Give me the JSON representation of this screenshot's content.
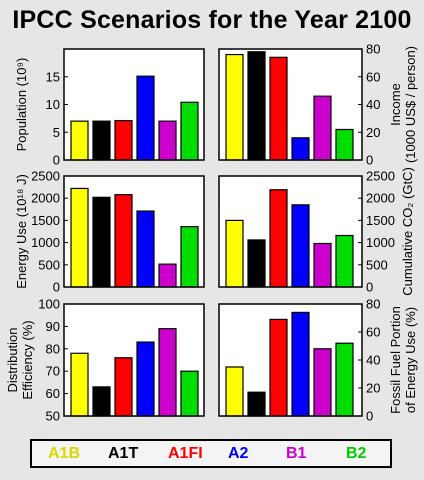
{
  "title": "IPCC Scenarios for the Year 2100",
  "scenarios": [
    "A1B",
    "A1T",
    "A1FI",
    "A2",
    "B1",
    "B2"
  ],
  "colors": [
    "#ffff00",
    "#000000",
    "#ff0000",
    "#0000ff",
    "#cc00cc",
    "#00dd00"
  ],
  "legend_colors": [
    "#d8d800",
    "#000000",
    "#ff0000",
    "#0000ff",
    "#cc00cc",
    "#00cc00"
  ],
  "chart_data": [
    {
      "type": "bar",
      "id": "population",
      "categories": [
        "A1B",
        "A1T",
        "A1FI",
        "A2",
        "B1",
        "B2"
      ],
      "values": [
        7.0,
        7.0,
        7.1,
        15.1,
        7.0,
        10.4
      ],
      "ylabel": "Population (10⁹)",
      "ylim": [
        0,
        20
      ],
      "yticks": [
        0,
        5,
        10,
        15
      ],
      "axis_side": "left"
    },
    {
      "type": "bar",
      "id": "income",
      "categories": [
        "A1B",
        "A1T",
        "A1FI",
        "A2",
        "B1",
        "B2"
      ],
      "values": [
        76,
        78,
        74,
        16,
        46,
        22
      ],
      "ylabel": "Income",
      "ylabel2": "(1000 US$ / person)",
      "ylim": [
        0,
        80
      ],
      "yticks": [
        0,
        20,
        40,
        60,
        80
      ],
      "axis_side": "right"
    },
    {
      "type": "bar",
      "id": "energy-use",
      "categories": [
        "A1B",
        "A1T",
        "A1FI",
        "A2",
        "B1",
        "B2"
      ],
      "values": [
        2220,
        2020,
        2080,
        1710,
        515,
        1360
      ],
      "ylabel": "Energy Use (10¹⁸ J)",
      "ylim": [
        0,
        2500
      ],
      "yticks": [
        0,
        500,
        1000,
        1500,
        2000,
        2500
      ],
      "axis_side": "left"
    },
    {
      "type": "bar",
      "id": "cumulative-co2",
      "categories": [
        "A1B",
        "A1T",
        "A1FI",
        "A2",
        "B1",
        "B2"
      ],
      "values": [
        1500,
        1060,
        2190,
        1850,
        980,
        1160
      ],
      "ylabel": "Cumulative CO₂ (GtC)",
      "ylim": [
        0,
        2500
      ],
      "yticks": [
        0,
        500,
        1000,
        1500,
        2000,
        2500
      ],
      "axis_side": "right"
    },
    {
      "type": "bar",
      "id": "distribution-efficiency",
      "categories": [
        "A1B",
        "A1T",
        "A1FI",
        "A2",
        "B1",
        "B2"
      ],
      "values": [
        78,
        63,
        76,
        83,
        89,
        70
      ],
      "ylabel": "Distribution",
      "ylabel2": "Efficiency (%)",
      "ylim": [
        50,
        100
      ],
      "yticks": [
        50,
        60,
        70,
        80,
        90,
        100
      ],
      "axis_side": "left"
    },
    {
      "type": "bar",
      "id": "fossil-fuel-portion",
      "categories": [
        "A1B",
        "A1T",
        "A1FI",
        "A2",
        "B1",
        "B2"
      ],
      "values": [
        35,
        17,
        69,
        74,
        48,
        52
      ],
      "ylabel": "Fossil Fuel Portion",
      "ylabel2": "of Energy Use (%)",
      "ylim": [
        0,
        80
      ],
      "yticks": [
        0,
        20,
        40,
        60,
        80
      ],
      "axis_side": "right"
    }
  ]
}
